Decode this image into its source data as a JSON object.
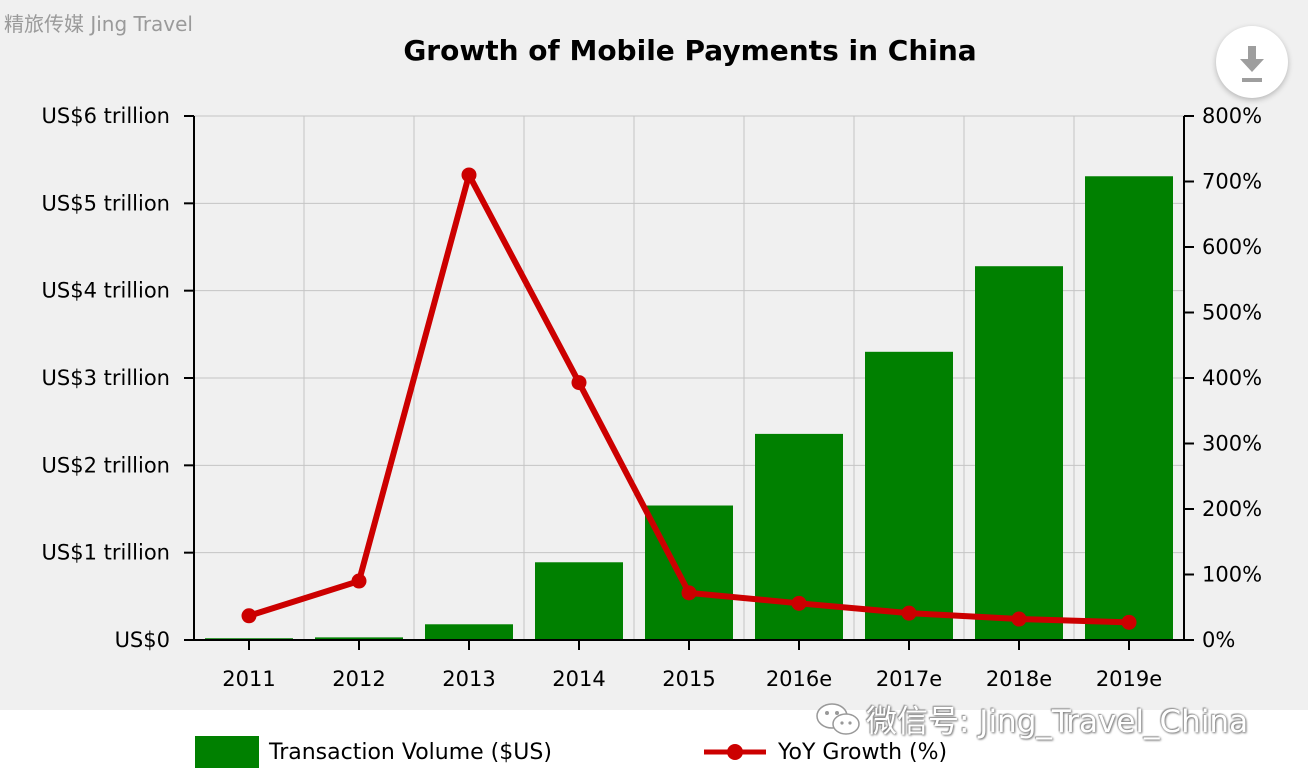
{
  "watermark_top": "精旅传媒 Jing Travel",
  "wechat_watermark": "微信号: Jing_Travel_China",
  "icons": {
    "download": "download-icon",
    "wechat": "wechat-logo-icon"
  },
  "chart_data": {
    "type": "bar",
    "title": "Growth of Mobile Payments in China",
    "categories": [
      "2011",
      "2012",
      "2013",
      "2014",
      "2015",
      "2016e",
      "2017e",
      "2018e",
      "2019e"
    ],
    "series": [
      {
        "name": "Transaction Volume ($US)",
        "type": "bar",
        "axis": "left",
        "color": "#008000",
        "values": [
          0.02,
          0.03,
          0.18,
          0.89,
          1.54,
          2.36,
          3.3,
          4.28,
          5.31
        ]
      },
      {
        "name": "YoY Growth (%)",
        "type": "line",
        "axis": "right",
        "color": "#cc0000",
        "values": [
          37,
          90,
          710,
          393,
          72,
          56,
          41,
          32,
          27
        ]
      }
    ],
    "y_left": {
      "ylim": [
        0,
        6
      ],
      "ticks": [
        0,
        1,
        2,
        3,
        4,
        5,
        6
      ],
      "tick_labels": [
        "US$0",
        "US$1 trillion",
        "US$2 trillion",
        "US$3 trillion",
        "US$4 trillion",
        "US$5 trillion",
        "US$6 trillion"
      ]
    },
    "y_right": {
      "ylim": [
        0,
        800
      ],
      "ticks": [
        0,
        100,
        200,
        300,
        400,
        500,
        600,
        700,
        800
      ],
      "tick_labels": [
        "0%",
        "100%",
        "200%",
        "300%",
        "400%",
        "500%",
        "600%",
        "700%",
        "800%"
      ]
    },
    "grid": true,
    "legend_position": "bottom"
  }
}
